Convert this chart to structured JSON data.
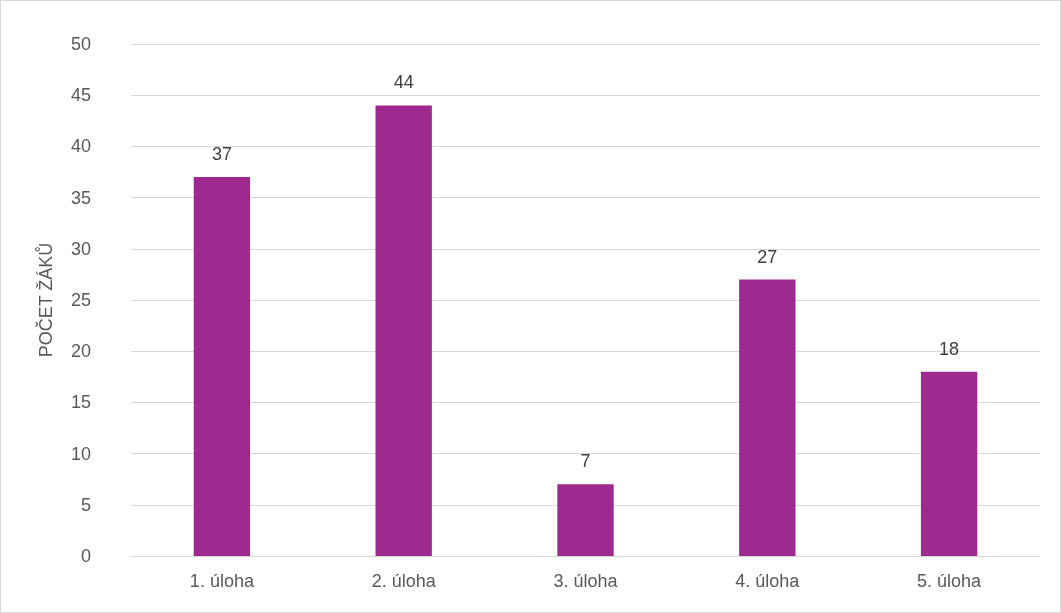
{
  "chart_data": {
    "type": "bar",
    "ylabel": "POČET ŽÁKŮ",
    "categories": [
      "1. úloha",
      "2. úloha",
      "3. úloha",
      "4. úloha",
      "5. úloha"
    ],
    "values": [
      37,
      44,
      7,
      27,
      18
    ],
    "color": "#9e2a8f",
    "ylim": [
      0,
      50
    ],
    "yticks": [
      0,
      5,
      10,
      15,
      20,
      25,
      30,
      35,
      40,
      45,
      50
    ],
    "grid": "y",
    "data_labels": true
  }
}
